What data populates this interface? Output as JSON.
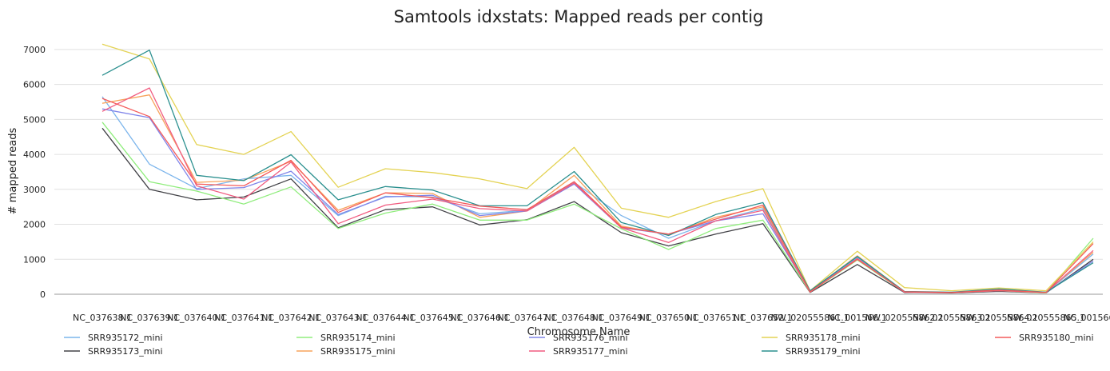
{
  "chart_data": {
    "type": "line",
    "title": "Samtools idxstats: Mapped reads per contig",
    "xlabel": "Chromosome Name",
    "ylabel": "# mapped reads",
    "ylim": [
      0,
      7500
    ],
    "yticks": [
      0,
      1000,
      2000,
      3000,
      4000,
      5000,
      6000,
      7000
    ],
    "grid": true,
    "legend_position": "bottom",
    "categories": [
      "NC_037638.1",
      "NC_037639.1",
      "NC_037640.1",
      "NC_037641.1",
      "NC_037642.1",
      "NC_037643.1",
      "NC_037644.1",
      "NC_037645.1",
      "NC_037646.1",
      "NC_037647.1",
      "NC_037648.1",
      "NC_037649.1",
      "NC_037650.1",
      "NC_037651.1",
      "NC_037652.1",
      "NW_020555861.1",
      "NC_001566.1",
      "NW_020555862.1",
      "NW_020555863.1",
      "NW_020555864.1",
      "NW_020555865.1",
      "NC_001566.1"
    ],
    "series": [
      {
        "name": "SRR935172_mini",
        "color": "#7cb5ec",
        "values": [
          5650,
          3720,
          3020,
          3300,
          3400,
          2250,
          2800,
          2780,
          2300,
          2400,
          3200,
          2250,
          1600,
          2100,
          2450,
          90,
          1050,
          70,
          50,
          100,
          50,
          1150
        ]
      },
      {
        "name": "SRR935173_mini",
        "color": "#434348",
        "values": [
          4750,
          3000,
          2700,
          2780,
          3300,
          1900,
          2420,
          2500,
          1980,
          2130,
          2650,
          1760,
          1380,
          1720,
          2020,
          50,
          850,
          50,
          40,
          80,
          40,
          1000
        ]
      },
      {
        "name": "SRR935174_mini",
        "color": "#90ed7d",
        "values": [
          4920,
          3220,
          2950,
          2580,
          3070,
          1880,
          2320,
          2580,
          2120,
          2120,
          2580,
          1870,
          1280,
          1880,
          2120,
          60,
          980,
          60,
          50,
          100,
          40,
          1600
        ]
      },
      {
        "name": "SRR935175_mini",
        "color": "#f7a35c",
        "values": [
          5460,
          5700,
          3200,
          3260,
          3800,
          2400,
          2900,
          2880,
          2200,
          2380,
          3400,
          1950,
          1700,
          2200,
          2500,
          90,
          1100,
          70,
          50,
          120,
          60,
          1200
        ]
      },
      {
        "name": "SRR935176_mini",
        "color": "#8085e9",
        "values": [
          5300,
          5050,
          3000,
          3050,
          3520,
          2280,
          2780,
          2830,
          2250,
          2380,
          3150,
          1900,
          1720,
          2100,
          2300,
          80,
          1020,
          60,
          50,
          110,
          50,
          950
        ]
      },
      {
        "name": "SRR935177_mini",
        "color": "#f15c80",
        "values": [
          5230,
          5900,
          3100,
          2720,
          3780,
          2020,
          2550,
          2720,
          2450,
          2380,
          3180,
          1900,
          1480,
          2100,
          2400,
          60,
          1020,
          60,
          50,
          100,
          50,
          1250
        ]
      },
      {
        "name": "SRR935178_mini",
        "color": "#e4d354",
        "values": [
          7150,
          6730,
          4280,
          4000,
          4650,
          3060,
          3590,
          3480,
          3300,
          3020,
          4200,
          2460,
          2200,
          2650,
          3020,
          100,
          1230,
          190,
          100,
          180,
          100,
          1500
        ]
      },
      {
        "name": "SRR935179_mini",
        "color": "#2b908f",
        "values": [
          6260,
          6980,
          3400,
          3250,
          3990,
          2700,
          3080,
          2980,
          2530,
          2530,
          3510,
          2050,
          1680,
          2280,
          2620,
          100,
          1080,
          80,
          60,
          150,
          60,
          900
        ]
      },
      {
        "name": "SRR935180_mini",
        "color": "#f45b5b",
        "values": [
          5600,
          5080,
          3150,
          3100,
          3830,
          2340,
          2900,
          2760,
          2520,
          2420,
          3220,
          1920,
          1720,
          2150,
          2550,
          70,
          1000,
          70,
          50,
          120,
          50,
          1450
        ]
      }
    ]
  }
}
